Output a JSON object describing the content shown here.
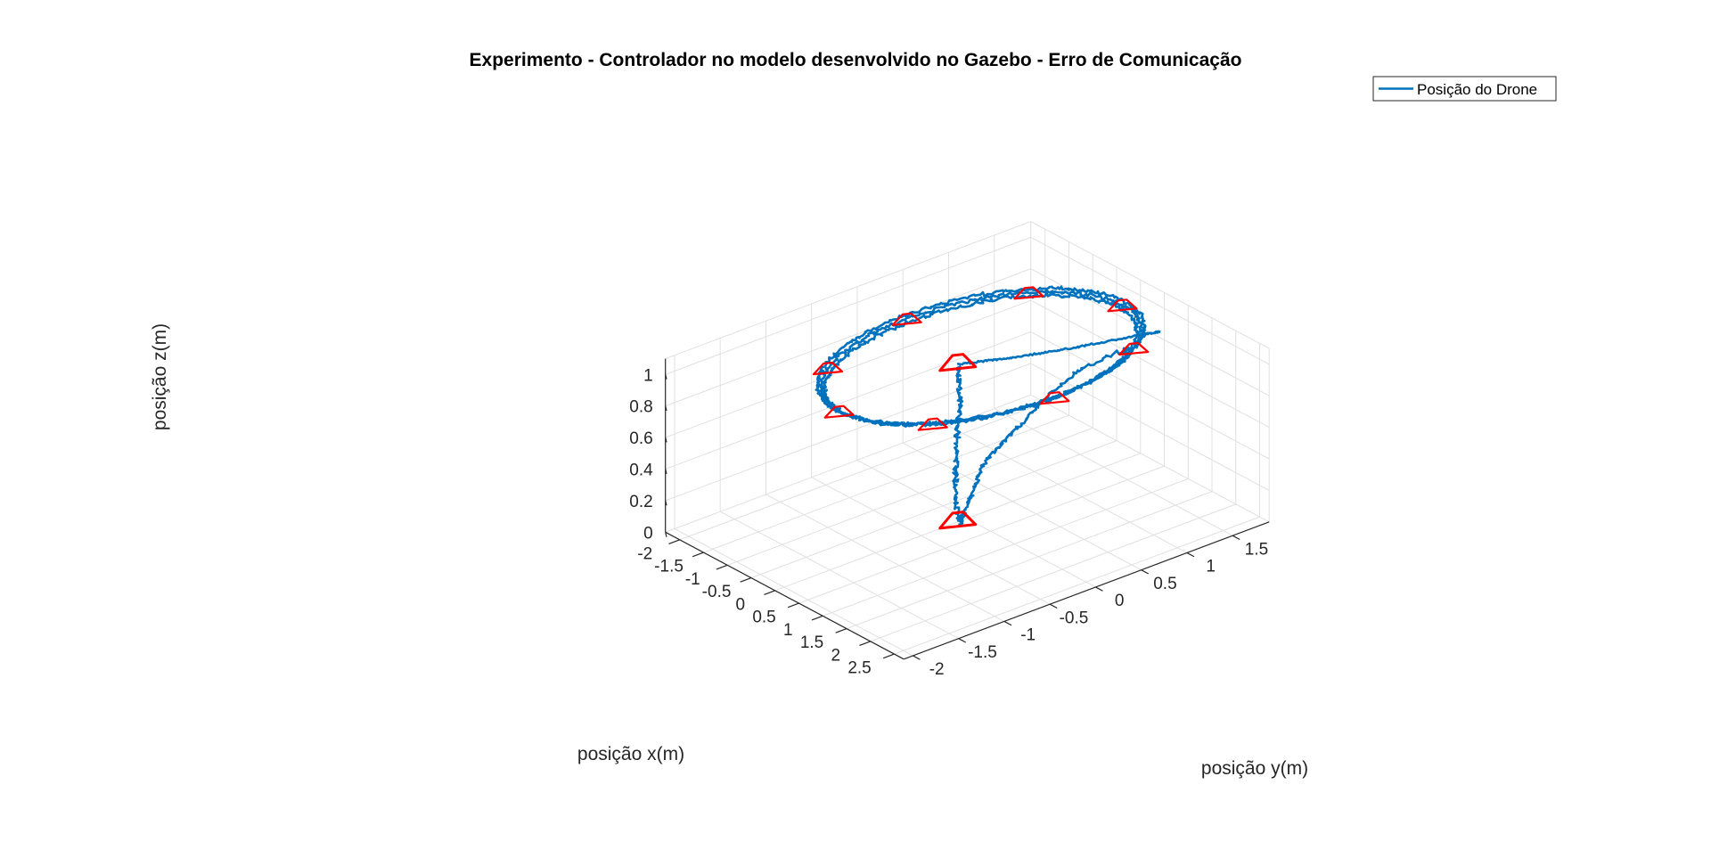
{
  "chart_data": {
    "type": "line",
    "projection": "3d",
    "title": "Experimento - Controlador no modelo desenvolvido no Gazebo - Erro de Comunicação",
    "xlabel": "posição x(m)",
    "ylabel": "posição y(m)",
    "zlabel": "posição z(m)",
    "xlim": [
      -2.3,
      2.7
    ],
    "ylim": [
      -2.1,
      1.9
    ],
    "zlim": [
      0,
      1.1
    ],
    "xticks": [
      "-2",
      "-1.5",
      "-1",
      "-0.5",
      "0",
      "0.5",
      "1",
      "1.5",
      "2",
      "2.5"
    ],
    "yticks": [
      "-2",
      "-1.5",
      "-1",
      "-0.5",
      "0",
      "0.5",
      "1",
      "1.5"
    ],
    "zticks": [
      "0",
      "0.2",
      "0.4",
      "0.6",
      "0.8",
      "1"
    ],
    "grid": true,
    "legend": {
      "placement": "top-right",
      "entries": [
        "Posição do Drone"
      ]
    },
    "colors": {
      "trajectory": "#0072BD",
      "markers": "#FF0000",
      "axis": "#262626",
      "grid": "#E0E0E0"
    },
    "circle": {
      "center": [
        0.1,
        0.1
      ],
      "radius": 1.55,
      "altitude": 1.0,
      "laps": 3
    },
    "takeoff": {
      "x": 0.0,
      "y": -0.1,
      "z": 0.0
    },
    "ascent": [
      [
        0.0,
        -0.1,
        0.0
      ],
      [
        -0.05,
        -0.1,
        0.2
      ],
      [
        0.05,
        -0.15,
        0.4
      ],
      [
        0.0,
        -0.1,
        0.6
      ],
      [
        0.05,
        -0.1,
        0.8
      ],
      [
        0.0,
        -0.1,
        1.0
      ]
    ],
    "transit_out": [
      [
        0.0,
        -0.1,
        1.0
      ],
      [
        0.3,
        0.3,
        1.0
      ],
      [
        0.6,
        0.8,
        1.0
      ],
      [
        0.9,
        1.4,
        1.0
      ],
      [
        1.0,
        1.6,
        1.0
      ]
    ],
    "return_path": [
      [
        1.1,
        1.2,
        1.0
      ],
      [
        1.0,
        0.7,
        0.95
      ],
      [
        0.85,
        0.4,
        0.8
      ],
      [
        0.7,
        0.2,
        0.65
      ],
      [
        0.55,
        0.1,
        0.55
      ],
      [
        0.35,
        0.0,
        0.4
      ],
      [
        0.2,
        -0.05,
        0.2
      ],
      [
        0.1,
        -0.1,
        0.05
      ],
      [
        0.05,
        -0.1,
        0.0
      ]
    ],
    "waypoints": [
      [
        1.65,
        0.1,
        1.0
      ],
      [
        1.2,
        1.2,
        1.0
      ],
      [
        0.1,
        1.65,
        1.0
      ],
      [
        -1.0,
        1.2,
        1.0
      ],
      [
        -1.45,
        0.1,
        1.0
      ],
      [
        -1.0,
        -1.0,
        1.0
      ],
      [
        0.1,
        -1.45,
        1.0
      ],
      [
        1.2,
        -1.0,
        1.0
      ],
      [
        0.0,
        -0.1,
        1.0
      ],
      [
        0.0,
        -0.1,
        0.0
      ]
    ]
  }
}
